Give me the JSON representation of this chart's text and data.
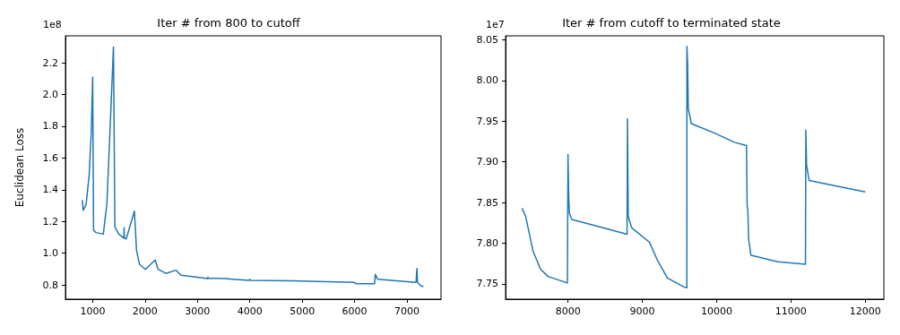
{
  "chart_data": [
    {
      "type": "line",
      "title": "Iter # from 800 to cutoff",
      "ylabel": "Euclidean Loss",
      "annotations": [
        "1e8"
      ],
      "color": "#1f77b4",
      "grid": false,
      "x": [
        800,
        820,
        876,
        932,
        973,
        1000,
        1017,
        1063,
        1203,
        1271,
        1329,
        1397,
        1424,
        1498,
        1595,
        1600,
        1605,
        1640,
        1797,
        1837,
        1893,
        2005,
        2193,
        2249,
        2402,
        2588,
        2685,
        2995,
        3193,
        3200,
        3205,
        3532,
        3673,
        3983,
        4000,
        4005,
        4800,
        5986,
        6030,
        6381,
        6395,
        6439,
        7173,
        7190,
        7200,
        7257,
        7313
      ],
      "values": [
        1.335,
        1.27,
        1.31,
        1.49,
        1.76,
        2.11,
        1.145,
        1.13,
        1.12,
        1.31,
        1.76,
        2.3,
        1.165,
        1.12,
        1.095,
        1.16,
        1.095,
        1.09,
        1.265,
        1.02,
        0.93,
        0.898,
        0.957,
        0.898,
        0.872,
        0.893,
        0.861,
        0.849,
        0.84,
        0.85,
        0.842,
        0.84,
        0.836,
        0.829,
        0.836,
        0.829,
        0.826,
        0.816,
        0.807,
        0.807,
        0.867,
        0.836,
        0.816,
        0.903,
        0.817,
        0.796,
        0.789
      ],
      "xlim": [
        480,
        7650
      ],
      "ylim": [
        0.71,
        2.37
      ],
      "xticks": [
        1000,
        2000,
        3000,
        4000,
        5000,
        6000,
        7000
      ],
      "yticks": [
        {
          "value": 0.8,
          "label": "0.8"
        },
        {
          "value": 1.0,
          "label": "1.0"
        },
        {
          "value": 1.2,
          "label": "1.2"
        },
        {
          "value": 1.4,
          "label": "1.4"
        },
        {
          "value": 1.6,
          "label": "1.6"
        },
        {
          "value": 1.8,
          "label": "1.8"
        },
        {
          "value": 2.0,
          "label": "2.0"
        },
        {
          "value": 2.2,
          "label": "2.2"
        }
      ]
    },
    {
      "type": "line",
      "title": "Iter # from cutoff to terminated state",
      "annotations": [
        "1e7"
      ],
      "color": "#1f77b4",
      "grid": false,
      "x": [
        7382,
        7430,
        7530,
        7630,
        7731,
        7992,
        8000,
        8010,
        8020,
        8052,
        8795,
        8800,
        8810,
        8856,
        9097,
        9197,
        9338,
        9558,
        9599,
        9600,
        9610,
        9618,
        9659,
        9980,
        10241,
        10402,
        10410,
        10420,
        10430,
        10462,
        10823,
        11195,
        11200,
        11210,
        11245,
        12000
      ],
      "values": [
        7.843,
        7.833,
        7.79,
        7.768,
        7.759,
        7.751,
        7.909,
        7.854,
        7.836,
        7.829,
        7.811,
        7.953,
        7.833,
        7.819,
        7.801,
        7.78,
        7.757,
        7.746,
        7.745,
        8.042,
        8.019,
        7.966,
        7.947,
        7.935,
        7.924,
        7.92,
        7.847,
        7.84,
        7.805,
        7.785,
        7.777,
        7.774,
        7.939,
        7.896,
        7.877,
        7.863
      ],
      "xlim": [
        7160,
        12250
      ],
      "ylim": [
        7.731,
        8.055
      ],
      "xticks": [
        8000,
        9000,
        10000,
        11000,
        12000
      ],
      "yticks": [
        {
          "value": 7.75,
          "label": "7.75"
        },
        {
          "value": 7.8,
          "label": "7.80"
        },
        {
          "value": 7.85,
          "label": "7.85"
        },
        {
          "value": 7.9,
          "label": "7.90"
        },
        {
          "value": 7.95,
          "label": "7.95"
        },
        {
          "value": 8.0,
          "label": "8.00"
        },
        {
          "value": 8.05,
          "label": "8.05"
        }
      ]
    }
  ]
}
